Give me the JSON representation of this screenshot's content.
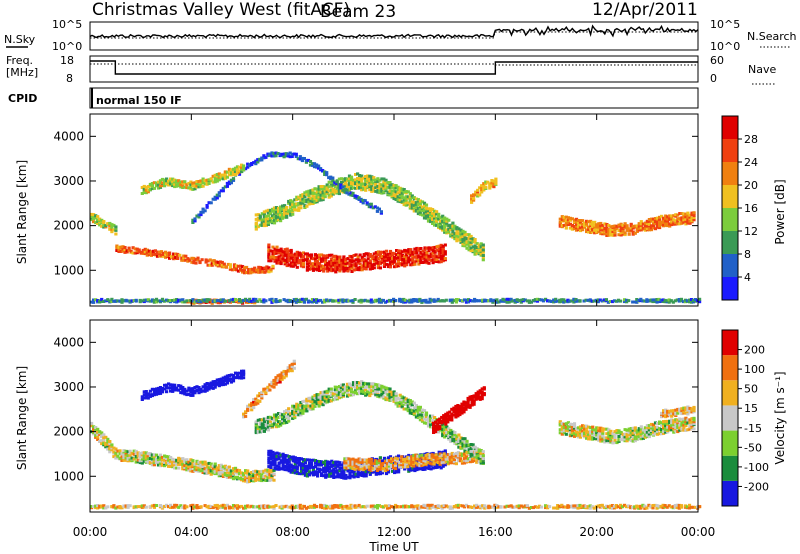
{
  "header": {
    "title": "Christmas Valley West (fitACF)",
    "beam": "Beam 23",
    "date": "12/Apr/2011"
  },
  "status_panels": {
    "nsky_label": "N.Sky",
    "nsky_ticks": [
      "10^5",
      "10^0"
    ],
    "nsky_right_ticks": [
      "10^5",
      "10^0"
    ],
    "nsearch_label": "N.Search",
    "freq_label": "Freq.",
    "freq_unit": "[MHz]",
    "freq_ticks": [
      "18",
      "8"
    ],
    "nave_label": "Nave",
    "nave_ticks": [
      "60",
      "0"
    ],
    "cpid_label": "CPID",
    "cpid_value": "normal 150 IF"
  },
  "colors": {
    "power": [
      "#1a1aff",
      "#2060c8",
      "#3a9a55",
      "#7ccc3c",
      "#f0c020",
      "#f08010",
      "#f04010",
      "#e00000"
    ],
    "velocity": [
      "#1818e0",
      "#1a8c3c",
      "#7cd030",
      "#c8c8c8",
      "#f0b020",
      "#f07010",
      "#e00000"
    ],
    "ground_scatter": "#c0c0c0"
  },
  "chart_data": [
    {
      "type": "heatmap",
      "quantity": "power",
      "ylabel": "Slant Range [km]",
      "yticks": [
        1000,
        2000,
        3000,
        4000
      ],
      "ylim": [
        200,
        4500
      ],
      "xlim": [
        0,
        24
      ],
      "xticks": [
        "00:00",
        "04:00",
        "08:00",
        "12:00",
        "16:00",
        "20:00",
        "00:00"
      ],
      "colorbar_label": "Power [dB]",
      "colorbar_ticks": [
        "4",
        "8",
        "12",
        "16",
        "20",
        "24",
        "28"
      ],
      "features": [
        {
          "name": "band",
          "t": [
            1.0,
            3.0,
            5.0,
            6.2,
            7.2
          ],
          "r": [
            1500,
            1350,
            1150,
            1000,
            1050
          ],
          "w": 140,
          "p": 24
        },
        {
          "name": "band",
          "t": [
            0.0,
            0.5,
            1.0
          ],
          "r": [
            2200,
            2050,
            1900
          ],
          "w": 180,
          "p": 16
        },
        {
          "name": "band",
          "t": [
            7.0,
            8.5,
            10.0,
            11.5,
            12.5,
            14.0
          ],
          "r": [
            1400,
            1200,
            1150,
            1250,
            1300,
            1400
          ],
          "w": 380,
          "p": 28
        },
        {
          "name": "band",
          "t": [
            6.5,
            7.5,
            8.5,
            9.5,
            10.5,
            11.5,
            12.5,
            13.5,
            14.5,
            15.5
          ],
          "r": [
            2100,
            2300,
            2600,
            2850,
            3000,
            2900,
            2600,
            2200,
            1800,
            1400
          ],
          "w": 350,
          "p": 14
        },
        {
          "name": "band",
          "t": [
            4.0,
            5.0,
            6.0,
            7.0,
            8.0,
            9.0,
            10.0,
            11.5
          ],
          "r": [
            2100,
            2700,
            3300,
            3600,
            3600,
            3300,
            2800,
            2300
          ],
          "w": 100,
          "p": 6
        },
        {
          "name": "band",
          "t": [
            2.0,
            3.0,
            4.0,
            5.0,
            6.0
          ],
          "r": [
            2800,
            3000,
            2900,
            3100,
            3300
          ],
          "w": 180,
          "p": 16
        },
        {
          "name": "band",
          "t": [
            15.0,
            15.5,
            16.0
          ],
          "r": [
            2600,
            2900,
            3000
          ],
          "w": 200,
          "p": 20
        },
        {
          "name": "band",
          "t": [
            18.5,
            19.5,
            20.5,
            21.5,
            22.5,
            23.8
          ],
          "r": [
            2100,
            2000,
            1900,
            1950,
            2100,
            2200
          ],
          "w": 260,
          "p": 22
        },
        {
          "name": "band",
          "t": [
            3.8,
            4.5,
            5.5,
            6.5
          ],
          "r": [
            300,
            300,
            310,
            300
          ],
          "w": 70,
          "p": 24
        },
        {
          "name": "band",
          "t": [
            0.0,
            6.0,
            12.0,
            18.0,
            24.0
          ],
          "r": [
            320,
            320,
            320,
            320,
            320
          ],
          "w": 60,
          "p": 8
        }
      ]
    },
    {
      "type": "heatmap",
      "quantity": "velocity",
      "ylabel": "Slant Range [km]",
      "yticks": [
        1000,
        2000,
        3000,
        4000
      ],
      "ylim": [
        200,
        4500
      ],
      "xlim": [
        0,
        24
      ],
      "xticks": [
        "00:00",
        "04:00",
        "08:00",
        "12:00",
        "16:00",
        "20:00",
        "00:00"
      ],
      "xlabel": "Time UT",
      "colorbar_label": "Velocity [m s⁻¹]",
      "colorbar_ticks": [
        "200",
        "100",
        "50",
        "15",
        "-15",
        "-50",
        "-100",
        "-200"
      ],
      "features": [
        {
          "name": "band",
          "t": [
            0.0,
            1.0,
            3.0,
            5.0,
            6.2,
            7.2
          ],
          "r": [
            2100,
            1500,
            1350,
            1150,
            1000,
            1050
          ],
          "w": 260,
          "v": 0
        },
        {
          "name": "band",
          "t": [
            7.0,
            8.5,
            10.0,
            11.5,
            12.5,
            14.0
          ],
          "r": [
            1400,
            1200,
            1150,
            1250,
            1300,
            1400
          ],
          "w": 380,
          "v": 150
        },
        {
          "name": "band",
          "t": [
            10.0,
            11.5,
            12.5,
            14.0,
            15.5
          ],
          "r": [
            1300,
            1250,
            1350,
            1400,
            1450
          ],
          "w": 250,
          "v": -40
        },
        {
          "name": "band",
          "t": [
            6.5,
            7.5,
            8.5,
            9.5,
            10.5,
            11.5,
            12.5,
            13.5,
            14.5,
            15.5
          ],
          "r": [
            2100,
            2300,
            2600,
            2850,
            3000,
            2900,
            2600,
            2200,
            1800,
            1400
          ],
          "w": 300,
          "v": 30
        },
        {
          "name": "band",
          "t": [
            6.0,
            7.0,
            8.0
          ],
          "r": [
            2400,
            3000,
            3500
          ],
          "w": 200,
          "v": -45
        },
        {
          "name": "band",
          "t": [
            2.0,
            3.0,
            4.0,
            5.0,
            6.0
          ],
          "r": [
            2800,
            3000,
            2900,
            3100,
            3300
          ],
          "w": 180,
          "v": 180
        },
        {
          "name": "band",
          "t": [
            13.5,
            14.5,
            15.5
          ],
          "r": [
            2100,
            2500,
            2900
          ],
          "w": 260,
          "v": -180
        },
        {
          "name": "band",
          "t": [
            18.5,
            19.5,
            20.5,
            21.5,
            22.5,
            23.8
          ],
          "r": [
            2100,
            2000,
            1900,
            1950,
            2100,
            2200
          ],
          "w": 300,
          "v": 0
        },
        {
          "name": "band",
          "t": [
            22.5,
            23.8
          ],
          "r": [
            2400,
            2500
          ],
          "w": 160,
          "v": -40
        },
        {
          "name": "band",
          "t": [
            0.0,
            6.0,
            12.0,
            18.0,
            24.0
          ],
          "r": [
            320,
            320,
            320,
            320,
            320
          ],
          "w": 60,
          "v": -30
        }
      ]
    }
  ]
}
